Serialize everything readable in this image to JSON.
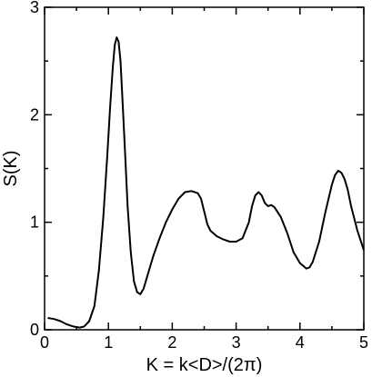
{
  "chart_data": {
    "type": "line",
    "title": "",
    "xlabel": "K = k<D>/(2π)",
    "ylabel": "S(K)",
    "xlim": [
      0,
      5
    ],
    "ylim": [
      0,
      3
    ],
    "x_ticks": [
      "0",
      "1",
      "2",
      "3",
      "4",
      "5"
    ],
    "y_ticks": [
      "0",
      "1",
      "2",
      "3"
    ],
    "grid": false,
    "legend": "none",
    "line_color": "#000000",
    "series": [
      {
        "x": [
          0.05,
          0.15,
          0.25,
          0.35,
          0.45,
          0.55,
          0.62,
          0.7,
          0.78,
          0.85,
          0.92,
          0.98,
          1.03,
          1.07,
          1.1,
          1.13,
          1.16,
          1.19,
          1.22,
          1.26,
          1.3,
          1.35,
          1.4,
          1.45,
          1.5,
          1.55,
          1.6,
          1.65,
          1.7,
          1.8,
          1.9,
          2.0,
          2.1,
          2.2,
          2.3,
          2.4,
          2.45,
          2.5,
          2.55,
          2.6,
          2.7,
          2.8,
          2.9,
          3.0,
          3.1,
          3.2,
          3.25,
          3.3,
          3.35,
          3.4,
          3.45,
          3.5,
          3.55,
          3.6,
          3.7,
          3.8,
          3.9,
          4.0,
          4.1,
          4.15,
          4.2,
          4.3,
          4.4,
          4.5,
          4.55,
          4.6,
          4.65,
          4.7,
          4.75,
          4.8,
          4.9,
          5.0
        ],
        "y": [
          0.11,
          0.1,
          0.08,
          0.05,
          0.03,
          0.02,
          0.03,
          0.08,
          0.22,
          0.55,
          1.05,
          1.6,
          2.1,
          2.45,
          2.65,
          2.72,
          2.68,
          2.5,
          2.15,
          1.65,
          1.15,
          0.72,
          0.45,
          0.35,
          0.33,
          0.38,
          0.48,
          0.58,
          0.68,
          0.85,
          1.0,
          1.12,
          1.22,
          1.28,
          1.29,
          1.27,
          1.22,
          1.1,
          0.98,
          0.92,
          0.87,
          0.84,
          0.82,
          0.82,
          0.85,
          1.0,
          1.15,
          1.25,
          1.28,
          1.25,
          1.18,
          1.15,
          1.16,
          1.14,
          1.05,
          0.9,
          0.72,
          0.62,
          0.57,
          0.58,
          0.63,
          0.82,
          1.1,
          1.35,
          1.44,
          1.48,
          1.46,
          1.4,
          1.3,
          1.15,
          0.92,
          0.74
        ]
      }
    ]
  }
}
